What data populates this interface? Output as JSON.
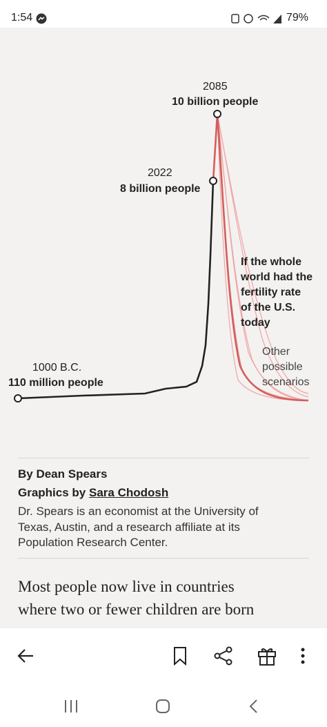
{
  "status_bar": {
    "time": "1:54",
    "battery": "79%"
  },
  "graphic": {
    "peak": {
      "year": "2085",
      "label": "10 billion people"
    },
    "today": {
      "year": "2022",
      "label": "8 billion people"
    },
    "start": {
      "year": "1000 B.C.",
      "label": "110 million people"
    },
    "us_scenario": [
      "If the whole",
      "world had the",
      "fertility rate",
      "of the U.S.",
      "today"
    ],
    "other_scenarios": [
      "Other",
      "possible",
      "scenarios"
    ]
  },
  "byline": {
    "author": "By Dean Spears",
    "graphics_prefix": "Graphics by",
    "graphics_author": "Sara Chodosh",
    "bio": [
      "Dr. Spears is an economist at the University of",
      "Texas, Austin, and a research affiliate at its",
      "Population Research Center."
    ]
  },
  "article": {
    "lines": [
      "Most people now live in countries",
      "where two or fewer children are born"
    ]
  }
}
